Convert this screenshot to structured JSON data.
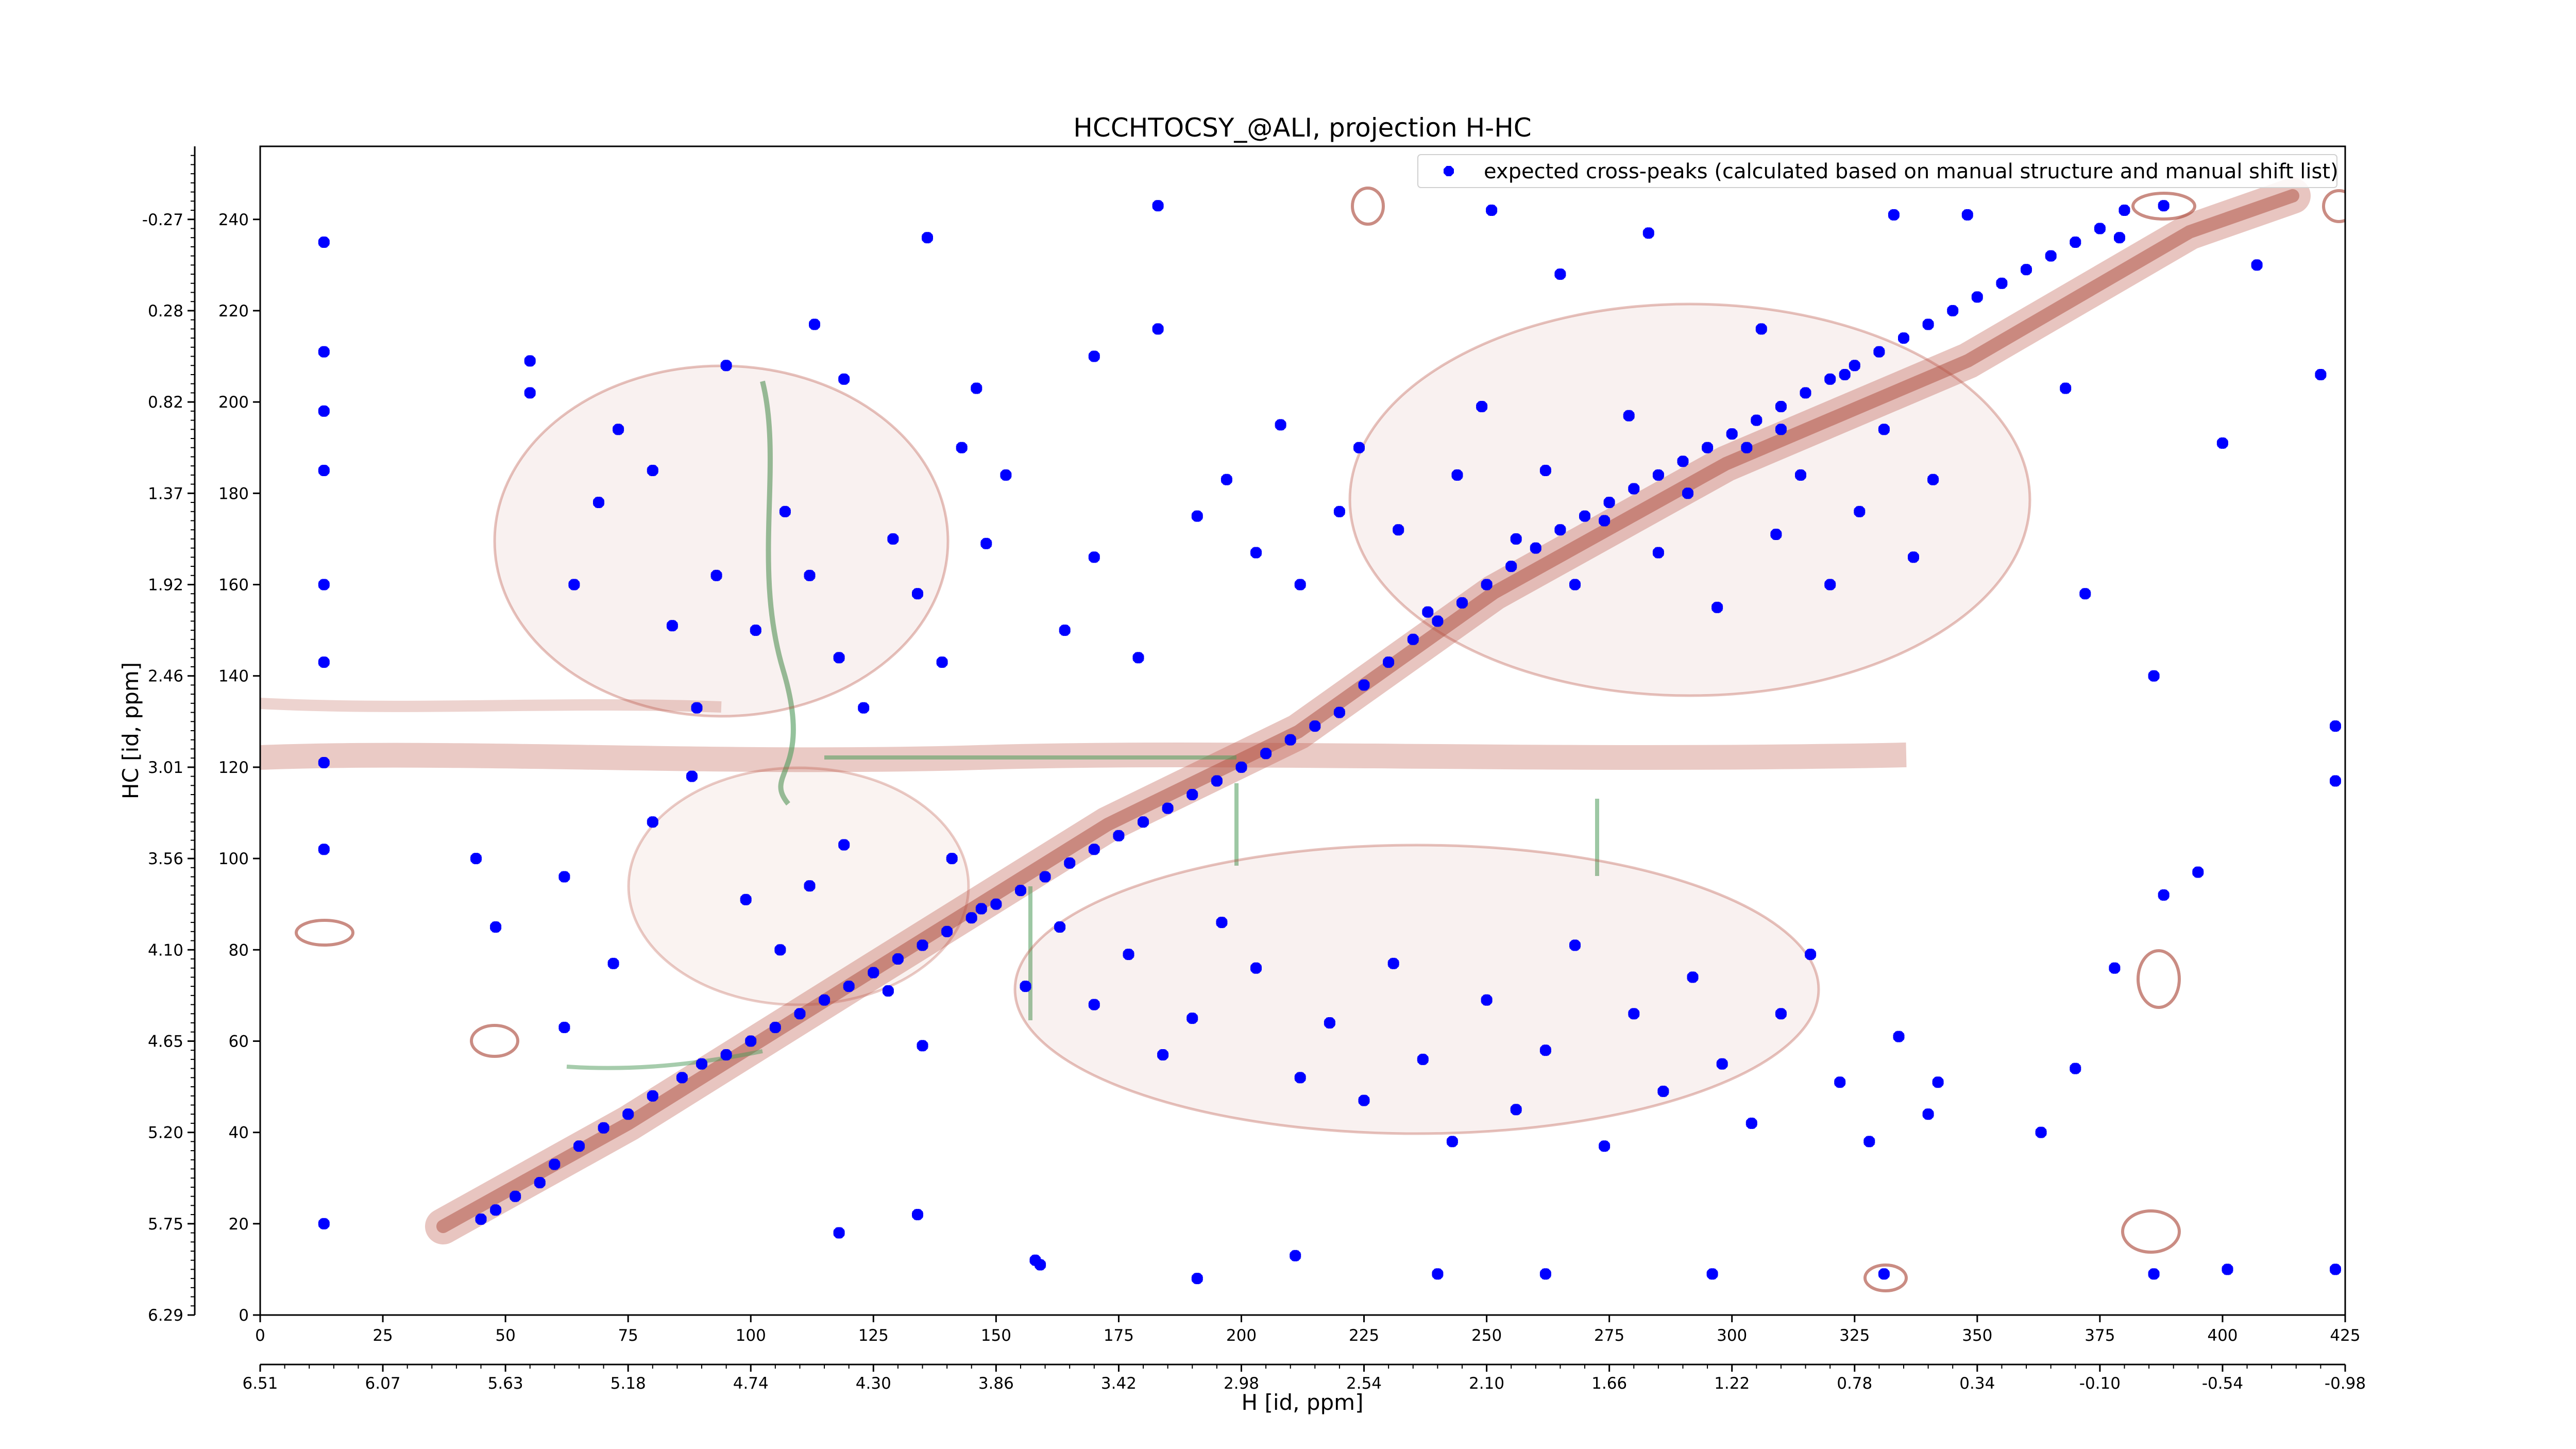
{
  "chart_data": {
    "type": "scatter",
    "title": "HCCHTOCSY_@ALI, projection H-HC",
    "xlabel": "H [id, ppm]",
    "ylabel": "HC [id, ppm]",
    "xlim": [
      0,
      425
    ],
    "ylim": [
      0,
      256
    ],
    "x_ticks": [
      "0",
      "25",
      "50",
      "75",
      "100",
      "125",
      "150",
      "175",
      "200",
      "225",
      "250",
      "275",
      "300",
      "325",
      "350",
      "375",
      "400",
      "425"
    ],
    "x_ticks_ppm": [
      "6.51",
      "6.07",
      "5.63",
      "5.18",
      "4.74",
      "4.30",
      "3.86",
      "3.42",
      "2.98",
      "2.54",
      "2.10",
      "1.66",
      "1.22",
      "0.78",
      "0.34",
      "-0.10",
      "-0.54",
      "-0.98"
    ],
    "y_ticks": [
      "0",
      "20",
      "40",
      "60",
      "80",
      "100",
      "120",
      "140",
      "160",
      "180",
      "200",
      "220",
      "240"
    ],
    "y_ticks_ppm": [
      "6.29",
      "5.75",
      "5.20",
      "4.65",
      "4.10",
      "3.56",
      "3.01",
      "2.46",
      "1.92",
      "1.37",
      "0.82",
      "0.28",
      "-0.27"
    ],
    "grid": false,
    "legend_position": "top-right",
    "legend": [
      "expected cross-peaks (calculated based on manual structure and manual shift list)"
    ],
    "series": [
      {
        "name": "expected cross-peaks (calculated based on manual structure and manual shift list)",
        "color": "#0000ff",
        "points": [
          [
            45,
            21
          ],
          [
            48,
            23
          ],
          [
            52,
            26
          ],
          [
            57,
            29
          ],
          [
            60,
            33
          ],
          [
            65,
            37
          ],
          [
            70,
            41
          ],
          [
            75,
            44
          ],
          [
            80,
            48
          ],
          [
            86,
            52
          ],
          [
            90,
            55
          ],
          [
            95,
            57
          ],
          [
            100,
            60
          ],
          [
            105,
            63
          ],
          [
            110,
            66
          ],
          [
            115,
            69
          ],
          [
            120,
            72
          ],
          [
            125,
            75
          ],
          [
            130,
            78
          ],
          [
            135,
            81
          ],
          [
            140,
            84
          ],
          [
            145,
            87
          ],
          [
            150,
            90
          ],
          [
            155,
            93
          ],
          [
            160,
            96
          ],
          [
            165,
            99
          ],
          [
            170,
            102
          ],
          [
            175,
            105
          ],
          [
            180,
            108
          ],
          [
            185,
            111
          ],
          [
            190,
            114
          ],
          [
            195,
            117
          ],
          [
            200,
            120
          ],
          [
            205,
            123
          ],
          [
            210,
            126
          ],
          [
            215,
            129
          ],
          [
            220,
            132
          ],
          [
            225,
            138
          ],
          [
            230,
            143
          ],
          [
            235,
            148
          ],
          [
            240,
            152
          ],
          [
            245,
            156
          ],
          [
            250,
            160
          ],
          [
            255,
            164
          ],
          [
            260,
            168
          ],
          [
            265,
            172
          ],
          [
            270,
            175
          ],
          [
            275,
            178
          ],
          [
            280,
            181
          ],
          [
            285,
            184
          ],
          [
            290,
            187
          ],
          [
            295,
            190
          ],
          [
            300,
            193
          ],
          [
            305,
            196
          ],
          [
            310,
            199
          ],
          [
            315,
            202
          ],
          [
            320,
            205
          ],
          [
            325,
            208
          ],
          [
            330,
            211
          ],
          [
            335,
            214
          ],
          [
            340,
            217
          ],
          [
            345,
            220
          ],
          [
            350,
            223
          ],
          [
            355,
            226
          ],
          [
            360,
            229
          ],
          [
            365,
            232
          ],
          [
            370,
            235
          ],
          [
            375,
            238
          ],
          [
            380,
            242
          ],
          [
            13,
            235
          ],
          [
            13,
            211
          ],
          [
            13,
            198
          ],
          [
            13,
            185
          ],
          [
            13,
            160
          ],
          [
            13,
            143
          ],
          [
            13,
            121
          ],
          [
            13,
            102
          ],
          [
            13,
            20
          ],
          [
            55,
            209
          ],
          [
            55,
            202
          ],
          [
            95,
            208
          ],
          [
            113,
            217
          ],
          [
            119,
            205
          ],
          [
            136,
            236
          ],
          [
            146,
            203
          ],
          [
            170,
            210
          ],
          [
            183,
            216
          ],
          [
            183,
            243
          ],
          [
            265,
            228
          ],
          [
            310,
            194
          ],
          [
            283,
            237
          ],
          [
            251,
            242
          ],
          [
            306,
            216
          ],
          [
            323,
            206
          ],
          [
            333,
            241
          ],
          [
            348,
            241
          ],
          [
            379,
            236
          ],
          [
            388,
            243
          ],
          [
            64,
            160
          ],
          [
            69,
            178
          ],
          [
            73,
            194
          ],
          [
            80,
            185
          ],
          [
            84,
            151
          ],
          [
            89,
            133
          ],
          [
            93,
            162
          ],
          [
            101,
            150
          ],
          [
            107,
            176
          ],
          [
            112,
            162
          ],
          [
            118,
            144
          ],
          [
            123,
            133
          ],
          [
            129,
            170
          ],
          [
            134,
            158
          ],
          [
            139,
            143
          ],
          [
            143,
            190
          ],
          [
            148,
            169
          ],
          [
            152,
            184
          ],
          [
            164,
            150
          ],
          [
            170,
            166
          ],
          [
            179,
            144
          ],
          [
            191,
            175
          ],
          [
            197,
            183
          ],
          [
            203,
            167
          ],
          [
            208,
            195
          ],
          [
            212,
            160
          ],
          [
            220,
            176
          ],
          [
            224,
            190
          ],
          [
            232,
            172
          ],
          [
            238,
            154
          ],
          [
            244,
            184
          ],
          [
            249,
            199
          ],
          [
            256,
            170
          ],
          [
            262,
            185
          ],
          [
            268,
            160
          ],
          [
            274,
            174
          ],
          [
            279,
            197
          ],
          [
            285,
            167
          ],
          [
            291,
            180
          ],
          [
            297,
            155
          ],
          [
            303,
            190
          ],
          [
            309,
            171
          ],
          [
            314,
            184
          ],
          [
            320,
            160
          ],
          [
            326,
            176
          ],
          [
            331,
            194
          ],
          [
            337,
            166
          ],
          [
            341,
            183
          ],
          [
            44,
            100
          ],
          [
            48,
            85
          ],
          [
            62,
            63
          ],
          [
            62,
            96
          ],
          [
            72,
            77
          ],
          [
            80,
            108
          ],
          [
            88,
            118
          ],
          [
            99,
            91
          ],
          [
            106,
            80
          ],
          [
            112,
            94
          ],
          [
            119,
            103
          ],
          [
            128,
            71
          ],
          [
            135,
            59
          ],
          [
            141,
            100
          ],
          [
            147,
            89
          ],
          [
            156,
            72
          ],
          [
            163,
            85
          ],
          [
            170,
            68
          ],
          [
            177,
            79
          ],
          [
            184,
            57
          ],
          [
            190,
            65
          ],
          [
            196,
            86
          ],
          [
            203,
            76
          ],
          [
            212,
            52
          ],
          [
            218,
            64
          ],
          [
            225,
            47
          ],
          [
            231,
            77
          ],
          [
            237,
            56
          ],
          [
            243,
            38
          ],
          [
            250,
            69
          ],
          [
            256,
            45
          ],
          [
            262,
            58
          ],
          [
            268,
            81
          ],
          [
            274,
            37
          ],
          [
            280,
            66
          ],
          [
            286,
            49
          ],
          [
            292,
            74
          ],
          [
            298,
            55
          ],
          [
            304,
            42
          ],
          [
            310,
            66
          ],
          [
            316,
            79
          ],
          [
            322,
            51
          ],
          [
            328,
            38
          ],
          [
            334,
            61
          ],
          [
            340,
            44
          ],
          [
            158,
            12
          ],
          [
            118,
            18
          ],
          [
            134,
            22
          ],
          [
            159,
            11
          ],
          [
            191,
            8
          ],
          [
            211,
            13
          ],
          [
            240,
            9
          ],
          [
            262,
            9
          ],
          [
            296,
            9
          ],
          [
            331,
            9
          ],
          [
            386,
            9
          ],
          [
            401,
            10
          ],
          [
            423,
            10
          ],
          [
            342,
            51
          ],
          [
            363,
            40
          ],
          [
            370,
            54
          ],
          [
            378,
            76
          ],
          [
            388,
            92
          ],
          [
            395,
            97
          ],
          [
            423,
            117
          ],
          [
            423,
            129
          ],
          [
            386,
            140
          ],
          [
            372,
            158
          ],
          [
            368,
            203
          ],
          [
            400,
            191
          ],
          [
            420,
            206
          ],
          [
            407,
            230
          ]
        ]
      }
    ]
  }
}
